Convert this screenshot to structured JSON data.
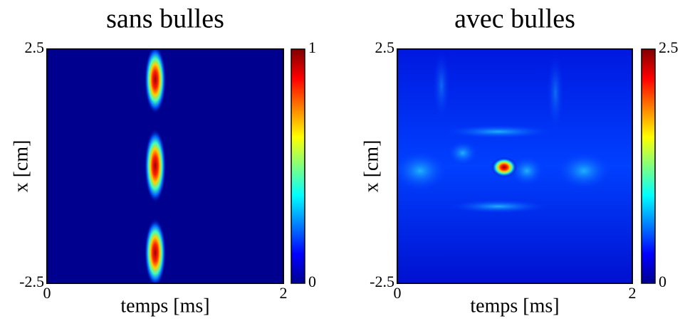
{
  "chart_data": [
    {
      "type": "heatmap",
      "title": "sans bulles",
      "xlabel": "temps [ms]",
      "ylabel": "x [cm]",
      "xlim": [
        0,
        2
      ],
      "xticks": [
        0,
        2
      ],
      "ylim": [
        -2.5,
        2.5
      ],
      "yticks": [
        -2.5,
        2.5
      ],
      "colorbar": {
        "colormap": "jet",
        "lim": [
          0,
          1
        ],
        "ticks": [
          0,
          1
        ]
      }
    },
    {
      "type": "heatmap",
      "title": "avec bulles",
      "xlabel": "temps [ms]",
      "ylabel": "x [cm]",
      "xlim": [
        0,
        2
      ],
      "xticks": [
        0,
        2
      ],
      "ylim": [
        -2.5,
        2.5
      ],
      "yticks": [
        -2.5,
        2.5
      ],
      "colorbar": {
        "colormap": "jet",
        "lim": [
          0,
          2.5
        ],
        "ticks": [
          0,
          2.5
        ]
      }
    }
  ]
}
